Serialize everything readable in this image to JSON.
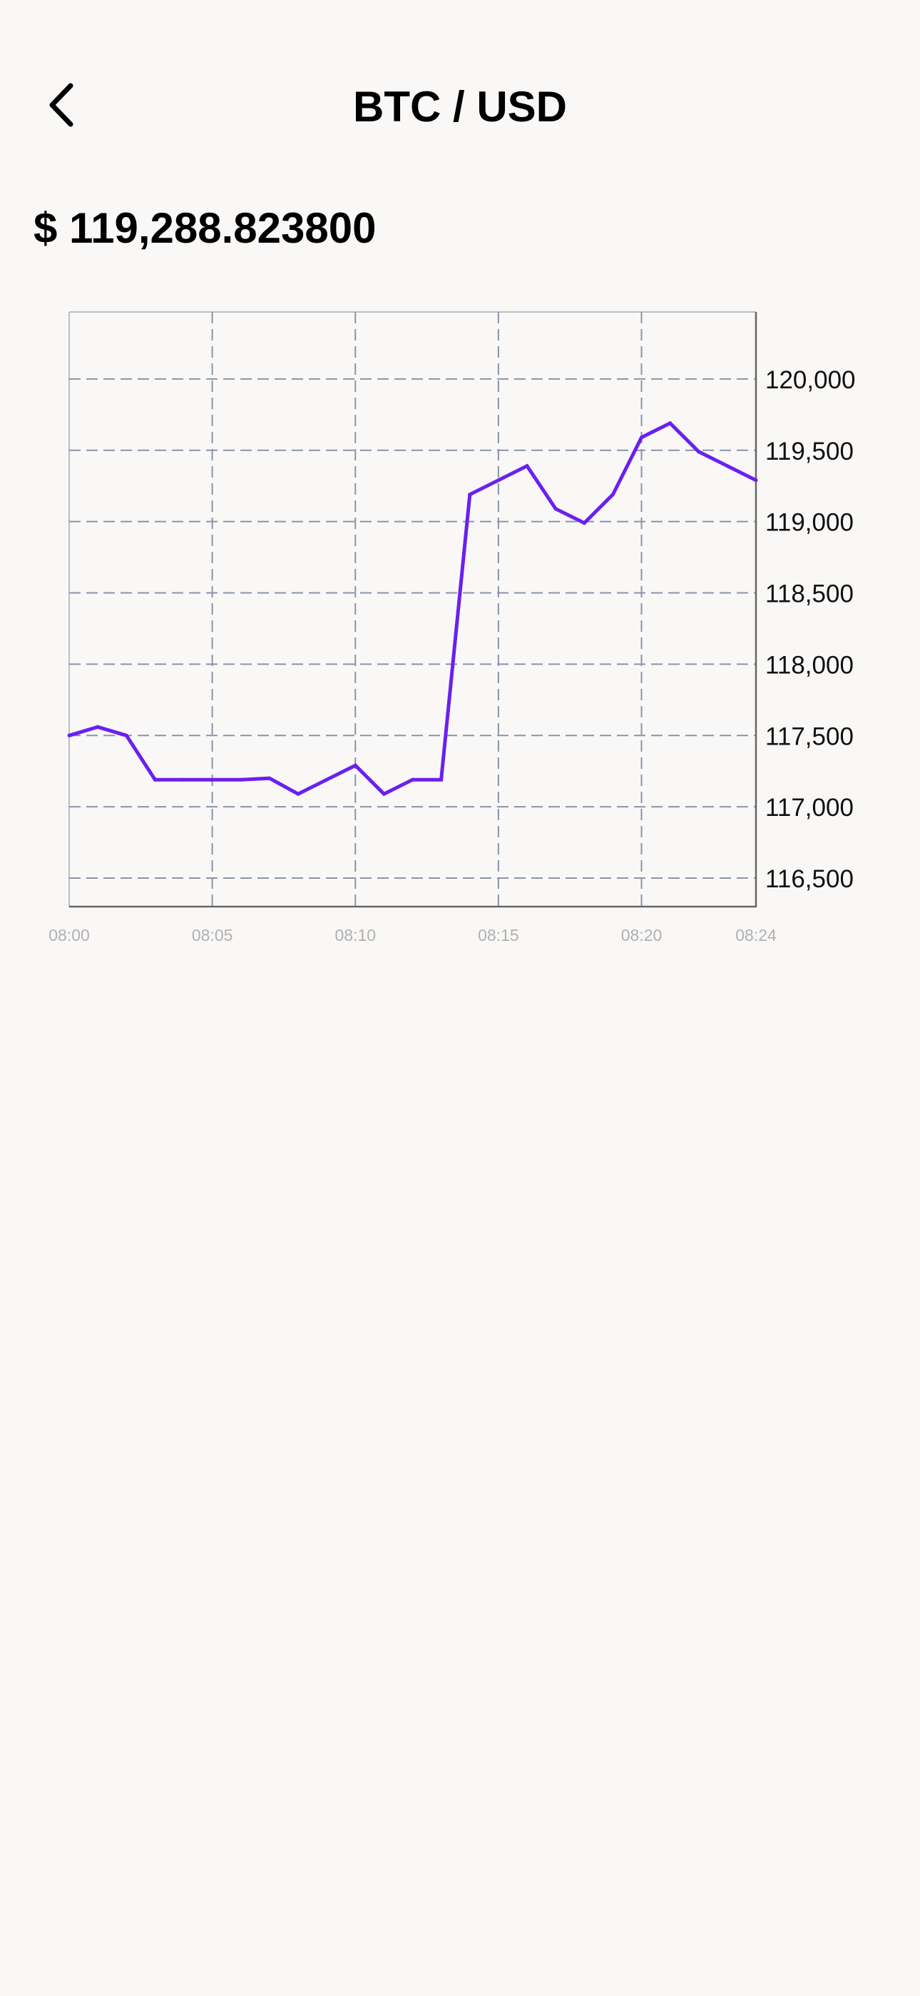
{
  "header": {
    "title": "BTC / USD",
    "back_icon": "chevron-left-icon"
  },
  "price": {
    "display": "$ 119,288.823800"
  },
  "chart_data": {
    "type": "line",
    "title": "",
    "xlabel": "",
    "ylabel": "",
    "y_axis_position": "right",
    "grid": true,
    "grid_style": "dashed",
    "legend": "none",
    "color": "#6b1ff0",
    "x_tick_labels": [
      "08:00",
      "08:05",
      "08:10",
      "08:15",
      "08:20",
      "08:24"
    ],
    "x_tick_minutes": [
      0,
      5,
      10,
      15,
      20,
      24
    ],
    "y_tick_labels": [
      "116,500",
      "117,000",
      "117,500",
      "118,000",
      "118,500",
      "119,000",
      "119,500",
      "120,000"
    ],
    "y_tick_values": [
      116500,
      117000,
      117500,
      118000,
      118500,
      119000,
      119500,
      120000
    ],
    "xlim": [
      "08:00",
      "08:24"
    ],
    "ylim": [
      116300,
      120470
    ],
    "series": [
      {
        "x": [
          "08:00",
          "08:01",
          "08:02",
          "08:03",
          "08:04",
          "08:05",
          "08:06",
          "08:07",
          "08:08",
          "08:09",
          "08:10",
          "08:11",
          "08:12",
          "08:13",
          "08:14",
          "08:15",
          "08:16",
          "08:17",
          "08:18",
          "08:19",
          "08:20",
          "08:21",
          "08:22",
          "08:23",
          "08:24"
        ],
        "values": [
          117500,
          117560,
          117500,
          117190,
          117190,
          117190,
          117190,
          117200,
          117090,
          117190,
          117290,
          117090,
          117190,
          117190,
          119190,
          119290,
          119390,
          119090,
          118990,
          119190,
          119590,
          119690,
          119490,
          119390,
          119290
        ]
      }
    ]
  }
}
